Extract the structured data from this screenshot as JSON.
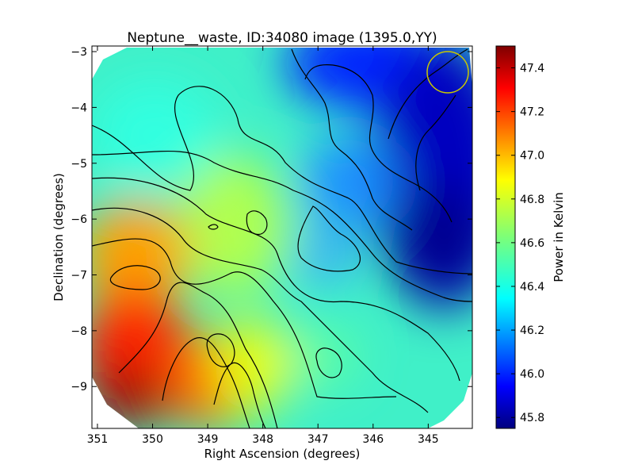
{
  "chart_data": {
    "type": "heatmap",
    "title": "Neptune__waste, ID:34080 image (1395.0,YY)",
    "xlabel": "Right Ascension (degrees)",
    "ylabel": "Declination (degrees)",
    "xlim": [
      351.1,
      344.2
    ],
    "ylim": [
      -9.75,
      -2.9
    ],
    "xticks": [
      351,
      350,
      349,
      348,
      347,
      346,
      345
    ],
    "yticks": [
      -3,
      -4,
      -5,
      -6,
      -7,
      -8,
      -9
    ],
    "colorbar": {
      "label": "Power in Kelvin",
      "range": [
        45.75,
        47.5
      ],
      "ticks": [
        "45.8",
        "46.0",
        "46.2",
        "46.4",
        "46.6",
        "46.8",
        "47.0",
        "47.2",
        "47.4"
      ],
      "colormap": "jet"
    },
    "value_extremes": {
      "min": 45.75,
      "max": 47.5
    },
    "beam_marker": {
      "ra": 344.65,
      "dec": -3.35,
      "color": "#c8c800"
    }
  }
}
